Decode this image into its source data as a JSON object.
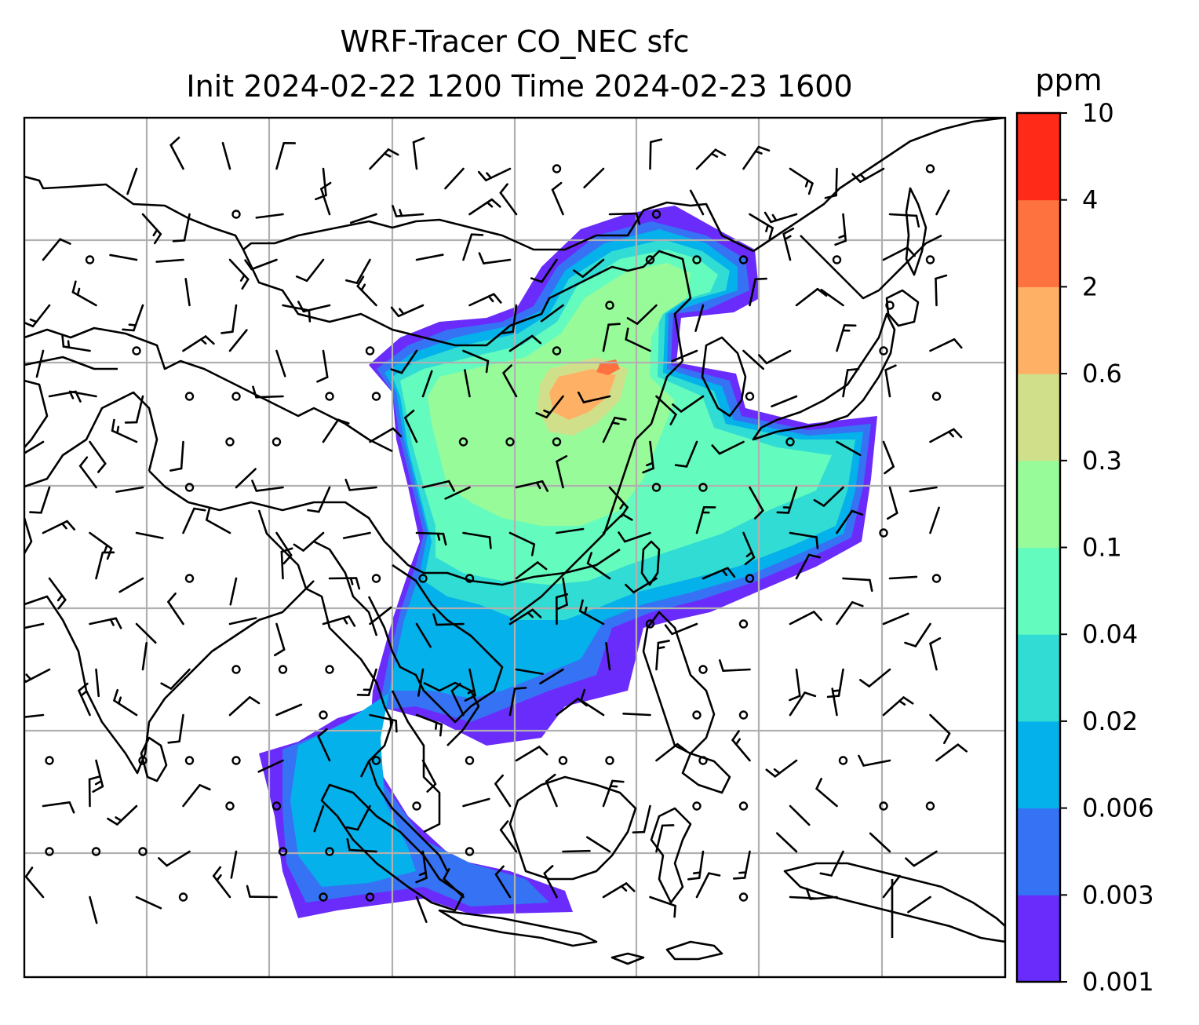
{
  "figure": {
    "title_line1": "WRF-Tracer CO_NEC sfc",
    "title_line2": "Init 2024-02-22 1200 Time 2024-02-23 1600"
  },
  "colorbar": {
    "units": "ppm",
    "tick_labels": [
      "0.001",
      "0.003",
      "0.006",
      "0.02",
      "0.04",
      "0.1",
      "0.3",
      "0.6",
      "2",
      "4",
      "10"
    ],
    "colors": [
      "#6a2cfb",
      "#3672f4",
      "#04b1ea",
      "#30dcd3",
      "#64fbbe",
      "#98fb9a",
      "#d0e08a",
      "#feb065",
      "#fe7240",
      "#ff2b18"
    ]
  },
  "map": {
    "gridlines": true,
    "gridline_color": "#b0b0b0",
    "coastline_color": "#000000",
    "wind_symbol_color": "#000000"
  }
}
